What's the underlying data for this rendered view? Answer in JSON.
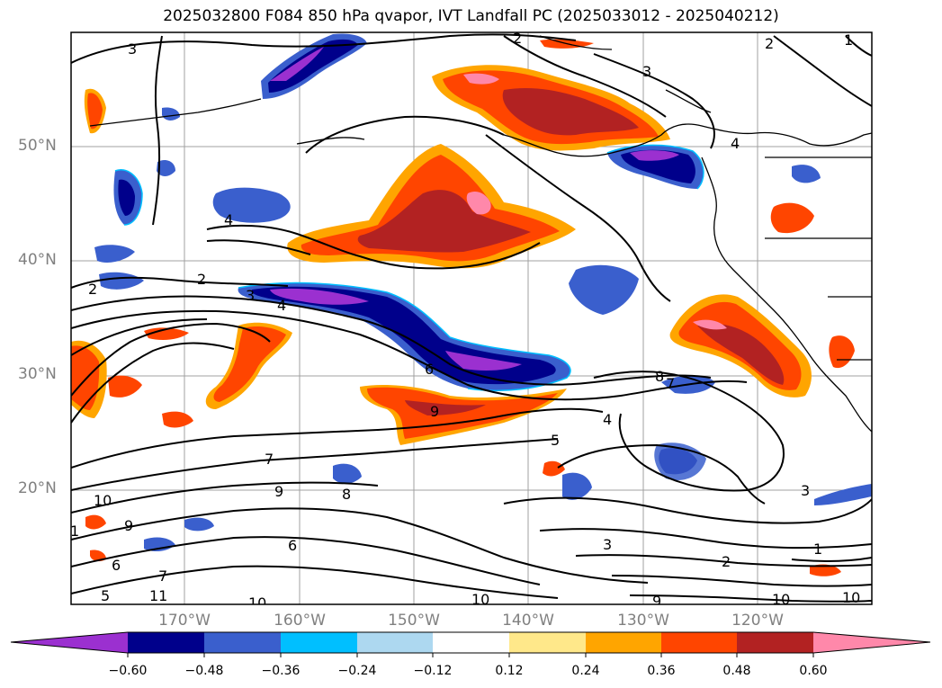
{
  "title": "2025032800 F084 850 hPa qvapor, IVT Landfall PC (2025033012 - 2025040212)",
  "lat_labels": [
    "50°N",
    "40°N",
    "30°N",
    "20°N"
  ],
  "lon_labels": [
    "170°W",
    "160°W",
    "150°W",
    "140°W",
    "130°W",
    "120°W"
  ],
  "colorbar": {
    "ticks": [
      "−0.60",
      "−0.48",
      "−0.36",
      "−0.24",
      "−0.12",
      "0.12",
      "0.24",
      "0.36",
      "0.48",
      "0.60"
    ],
    "colors": [
      "#9b30d0",
      "#00008b",
      "#3a5fcd",
      "#00bfff",
      "#add8f0",
      "#ffffff",
      "#ffe88a",
      "#ffa500",
      "#ff4500",
      "#b22222",
      "#ff88aa",
      "#ff80b0"
    ]
  },
  "contour_labels": [
    "3",
    "2",
    "1",
    "2",
    "3",
    "4",
    "2",
    "2",
    "3",
    "4",
    "6",
    "9",
    "8",
    "7",
    "4",
    "5",
    "3",
    "2",
    "1",
    "10",
    "9",
    "6",
    "7",
    "11",
    "10",
    "10",
    "9",
    "10",
    "10",
    "3",
    "4",
    "5",
    "6",
    "9",
    "8",
    "1",
    "7"
  ]
}
